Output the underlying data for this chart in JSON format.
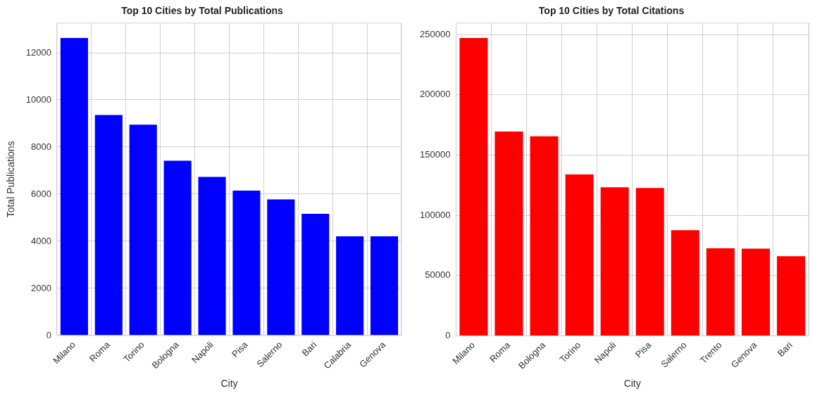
{
  "chart_data": [
    {
      "type": "bar",
      "title": "Top 10 Cities by Total Publications",
      "xlabel": "City",
      "ylabel": "Total Publications",
      "categories": [
        "Milano",
        "Roma",
        "Torino",
        "Bologna",
        "Napoli",
        "Pisa",
        "Salerno",
        "Bari",
        "Calabria",
        "Genova"
      ],
      "values": [
        12625,
        9360,
        8950,
        7420,
        6730,
        6150,
        5775,
        5160,
        4210,
        4210
      ],
      "color": "#0000ff",
      "ylim": [
        0,
        13260
      ],
      "yticks": [
        0,
        2000,
        4000,
        6000,
        8000,
        10000,
        12000
      ],
      "grid": true,
      "legend": false
    },
    {
      "type": "bar",
      "title": "Top 10 Cities by Total Citations",
      "xlabel": "City",
      "categories": [
        "Milano",
        "Roma",
        "Bologna",
        "Torino",
        "Napoli",
        "Pisa",
        "Salerno",
        "Trento",
        "Genova",
        "Bari"
      ],
      "values": [
        247200,
        169600,
        165700,
        134000,
        123300,
        122700,
        87700,
        72700,
        72300,
        66100
      ],
      "color": "#ff0000",
      "ylim": [
        0,
        259600
      ],
      "yticks": [
        0,
        50000,
        100000,
        150000,
        200000,
        250000
      ],
      "grid": true,
      "legend": false
    }
  ]
}
